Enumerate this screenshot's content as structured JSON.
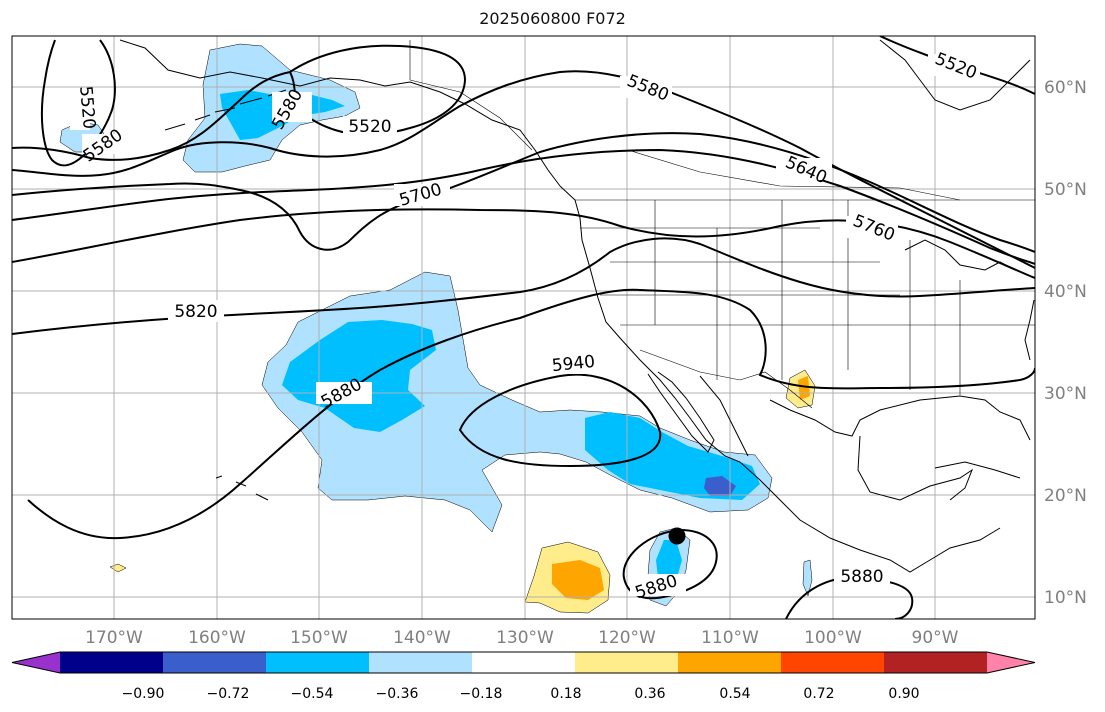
{
  "title": "2025060800 F072",
  "lon_labels": [
    "170°W",
    "160°W",
    "150°W",
    "140°W",
    "130°W",
    "120°W",
    "110°W",
    "100°W",
    "90°W"
  ],
  "lat_labels": [
    "60°N",
    "50°N",
    "40°N",
    "30°N",
    "20°N",
    "10°N"
  ],
  "contour_labels": [
    "5520",
    "5580",
    "5520",
    "5580",
    "5580",
    "5520",
    "5640",
    "5700",
    "5760",
    "5820",
    "5880",
    "5940",
    "5880",
    "5880"
  ],
  "colorbar": {
    "colors": [
      "#9932cc",
      "#00008b",
      "#3a5fcd",
      "#00bfff",
      "#b0e2ff",
      "#ffffff",
      "#ffec8b",
      "#ffa500",
      "#ff4500",
      "#b22222",
      "#ff82ab"
    ],
    "tick_labels": [
      "−0.90",
      "−0.72",
      "−0.54",
      "−0.36",
      "−0.18",
      "0.18",
      "0.36",
      "0.54",
      "0.72",
      "0.90"
    ]
  },
  "accent_colors": {
    "grid": "#b0b0b0",
    "axis_text": "#808080",
    "contour": "#000000"
  }
}
